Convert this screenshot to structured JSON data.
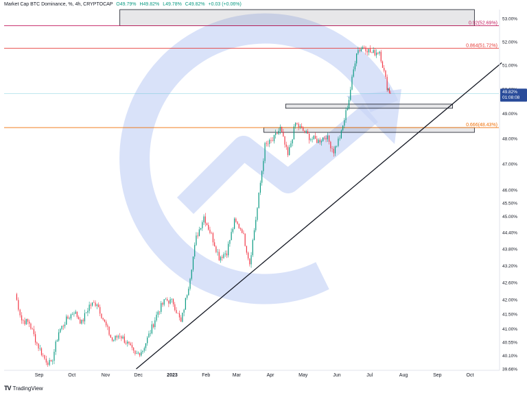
{
  "header": {
    "title": "Market Cap BTC Dominance, %, 4h, CRYPTOCAP",
    "open": "O49.79%",
    "high": "H49.82%",
    "low": "L49.78%",
    "close": "C49.82%",
    "change": "+0.03 (+0.06%)"
  },
  "footer": {
    "logo": "TV",
    "brand": "TradingView"
  },
  "price_tag": {
    "value": "49.82%",
    "countdown": "01:08:08"
  },
  "colors": {
    "up": "#089981",
    "down": "#f23645",
    "watermark": "#c9d6f7",
    "fib_092": "#c2185b",
    "fib_0864": "#e53935",
    "fib_0666": "#ef6c00",
    "current": "#5ec4d6",
    "tag": "#2a4c9a"
  },
  "chart_data": {
    "type": "line",
    "title": "Market Cap BTC Dominance, %, 4h, CRYPTOCAP",
    "y_scale": "log",
    "ylim": [
      39.66,
      53.4
    ],
    "x_ticks": [
      "Sep",
      "Oct",
      "Nov",
      "Dec",
      "2023",
      "Feb",
      "Mar",
      "Apr",
      "May",
      "Jun",
      "Jul",
      "Aug",
      "Sep",
      "Oct"
    ],
    "y_ticks": [
      53.0,
      52.0,
      51.0,
      50.0,
      49.0,
      48.0,
      47.0,
      46.0,
      45.5,
      45.0,
      44.4,
      43.8,
      43.2,
      42.6,
      42.0,
      41.5,
      41.0,
      40.55,
      40.1,
      39.66
    ],
    "y_tick_labels": [
      "53.00%",
      "52.00%",
      "51.00%",
      "50.00%",
      "49.00%",
      "48.00%",
      "47.00%",
      "46.00%",
      "45.50%",
      "45.00%",
      "44.40%",
      "43.80%",
      "43.20%",
      "42.60%",
      "42.00%",
      "41.50%",
      "41.00%",
      "40.55%",
      "40.10%",
      "39.66%"
    ],
    "x": [
      "2022-08-10",
      "2022-08-16",
      "2022-08-23",
      "2022-08-30",
      "2022-09-06",
      "2022-09-12",
      "2022-09-19",
      "2022-09-26",
      "2022-10-03",
      "2022-10-10",
      "2022-10-17",
      "2022-10-24",
      "2022-10-31",
      "2022-11-07",
      "2022-11-14",
      "2022-11-21",
      "2022-11-28",
      "2022-12-05",
      "2022-12-12",
      "2022-12-19",
      "2022-12-26",
      "2023-01-02",
      "2023-01-09",
      "2023-01-16",
      "2023-01-23",
      "2023-01-30",
      "2023-02-06",
      "2023-02-13",
      "2023-02-20",
      "2023-02-27",
      "2023-03-06",
      "2023-03-13",
      "2023-03-20",
      "2023-03-27",
      "2023-04-03",
      "2023-04-10",
      "2023-04-17",
      "2023-04-24",
      "2023-05-01",
      "2023-05-08",
      "2023-05-15",
      "2023-05-22",
      "2023-05-29",
      "2023-06-05",
      "2023-06-12",
      "2023-06-19",
      "2023-06-26",
      "2023-07-03",
      "2023-07-10",
      "2023-07-17",
      "2023-07-20"
    ],
    "series": [
      {
        "values": [
          42.2,
          41.3,
          41.2,
          40.5,
          40.0,
          39.8,
          40.9,
          41.3,
          41.6,
          41.2,
          41.8,
          41.9,
          41.2,
          40.6,
          40.8,
          40.5,
          40.1,
          40.3,
          40.9,
          41.6,
          42.0,
          41.9,
          41.2,
          42.5,
          44.2,
          45.0,
          44.3,
          43.5,
          43.7,
          44.8,
          44.5,
          43.3,
          45.3,
          47.7,
          47.9,
          48.4,
          47.3,
          48.6,
          48.3,
          48.0,
          47.9,
          48.1,
          47.5,
          48.2,
          49.6,
          51.6,
          51.8,
          51.5,
          51.6,
          50.1,
          49.82
        ]
      }
    ]
  },
  "annotations": {
    "fibs": [
      {
        "ratio": 0.92,
        "label": "0.92(52.69%)",
        "value": 52.69,
        "color": "#c2185b"
      },
      {
        "ratio": 0.864,
        "label": "0.864(51.72%)",
        "value": 51.72,
        "color": "#e53935"
      },
      {
        "ratio": 0.666,
        "label": "0.666(48.43%)",
        "value": 48.43,
        "color": "#ef6c00"
      }
    ],
    "zones": [
      {
        "from": "2022-11-14",
        "to": "2023-10-05",
        "low": 52.69,
        "high": 53.4
      },
      {
        "from": "2023-04-15",
        "to": "2023-09-15",
        "low": 49.22,
        "high": 49.38
      },
      {
        "from": "2023-03-26",
        "to": "2023-10-05",
        "low": 48.24,
        "high": 48.43
      }
    ],
    "trendline": {
      "from": [
        "2022-11-29",
        39.66
      ],
      "to": [
        "2023-10-30",
        51.1
      ]
    },
    "current_price": 49.82
  }
}
